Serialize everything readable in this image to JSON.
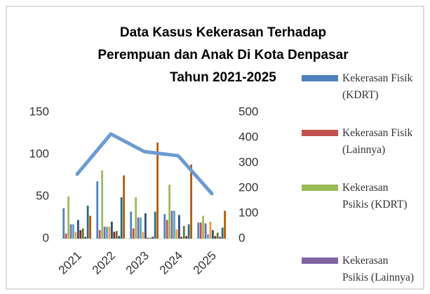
{
  "chart_data": {
    "type": "bar-line",
    "title": [
      "Data Kasus Kekerasan Terhadap",
      "Perempuan dan Anak Di Kota Denpasar",
      "Tahun 2021-2025"
    ],
    "categories": [
      "2021",
      "2022",
      "2023",
      "2024",
      "2025"
    ],
    "ylim": [
      0,
      150
    ],
    "yticks": [
      0,
      50,
      100,
      150
    ],
    "y2lim": [
      0,
      500
    ],
    "y2ticks": [
      0,
      100,
      200,
      300,
      400,
      500
    ],
    "series": [
      {
        "name": "Kekerasan Fisik (KDRT)",
        "color": "#4f81bd",
        "values": [
          36,
          68,
          32,
          29,
          19
        ]
      },
      {
        "name": "Kekerasan Fisik (Lainnya)",
        "color": "#c0504d",
        "values": [
          6,
          10,
          12,
          22,
          19
        ]
      },
      {
        "name": "Kekerasan Psikis (KDRT)",
        "color": "#9bbb59",
        "values": [
          50,
          81,
          49,
          64,
          27
        ]
      },
      {
        "name": "Kekerasan Psikis (Lainnya)",
        "color": "#8064a2",
        "values": [
          17,
          14,
          25,
          33,
          18
        ]
      },
      {
        "color": "#4bacc6",
        "values": [
          17,
          14,
          25,
          33,
          5
        ]
      },
      {
        "color": "#f79646",
        "values": [
          8,
          14,
          8,
          11,
          20
        ]
      },
      {
        "color": "#2c4d75",
        "values": [
          22,
          20,
          30,
          28,
          10
        ]
      },
      {
        "color": "#772c2a",
        "values": [
          10,
          8,
          1,
          2,
          3
        ]
      },
      {
        "color": "#5f7530",
        "values": [
          12,
          9,
          1,
          15,
          7
        ]
      },
      {
        "color": "#4d3b62",
        "values": [
          2,
          3,
          2,
          3,
          2
        ]
      },
      {
        "color": "#276a7c",
        "values": [
          39,
          49,
          32,
          17,
          13
        ]
      },
      {
        "color": "#b65708",
        "values": [
          27,
          75,
          114,
          88,
          33
        ]
      },
      {
        "color": "#6c9bd2",
        "axis": "y2",
        "kind": "line",
        "values": [
          255,
          414,
          344,
          328,
          178
        ]
      }
    ]
  }
}
